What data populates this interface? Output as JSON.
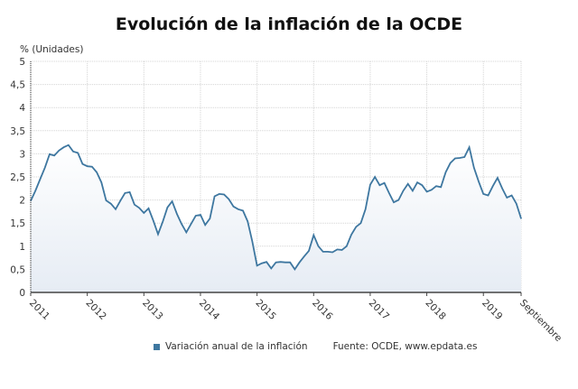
{
  "chart_data": {
    "type": "area",
    "title": "Evolución de la inflación de la OCDE",
    "ylabel": "% (Unidades)",
    "xlabel": "",
    "ylim": [
      0,
      5
    ],
    "yticks": [
      "0",
      "0,5",
      "1",
      "1,5",
      "2",
      "2,5",
      "3",
      "3,5",
      "4",
      "4,5",
      "5"
    ],
    "xticks": [
      "2011",
      "2012",
      "2013",
      "2014",
      "2015",
      "2016",
      "2017",
      "2018",
      "2019",
      "Septiembre"
    ],
    "grid": true,
    "legend_position": "bottom",
    "color": "#3e77a0",
    "series": [
      {
        "name": "Variación anual de la inflación",
        "x_start": "2011-01",
        "x_end": "2019-09",
        "frequency": "monthly",
        "values": [
          1.98,
          2.2,
          2.45,
          2.7,
          2.99,
          2.96,
          3.07,
          3.14,
          3.19,
          3.05,
          3.02,
          2.78,
          2.73,
          2.72,
          2.6,
          2.38,
          1.99,
          1.92,
          1.8,
          1.98,
          2.15,
          2.17,
          1.9,
          1.83,
          1.72,
          1.82,
          1.55,
          1.26,
          1.53,
          1.84,
          1.97,
          1.7,
          1.48,
          1.3,
          1.48,
          1.66,
          1.68,
          1.46,
          1.6,
          2.08,
          2.13,
          2.12,
          2.02,
          1.86,
          1.8,
          1.77,
          1.54,
          1.1,
          0.58,
          0.63,
          0.66,
          0.52,
          0.65,
          0.66,
          0.65,
          0.65,
          0.5,
          0.65,
          0.78,
          0.9,
          1.24,
          1.0,
          0.88,
          0.88,
          0.87,
          0.93,
          0.92,
          1.0,
          1.25,
          1.42,
          1.5,
          1.8,
          2.33,
          2.5,
          2.32,
          2.37,
          2.15,
          1.95,
          2.0,
          2.2,
          2.35,
          2.2,
          2.38,
          2.32,
          2.18,
          2.22,
          2.3,
          2.28,
          2.6,
          2.8,
          2.9,
          2.91,
          2.93,
          3.14,
          2.7,
          2.4,
          2.13,
          2.1,
          2.3,
          2.48,
          2.25,
          2.05,
          2.1,
          1.92,
          1.6
        ]
      }
    ]
  },
  "source": "Fuente: OCDE, www.epdata.es"
}
